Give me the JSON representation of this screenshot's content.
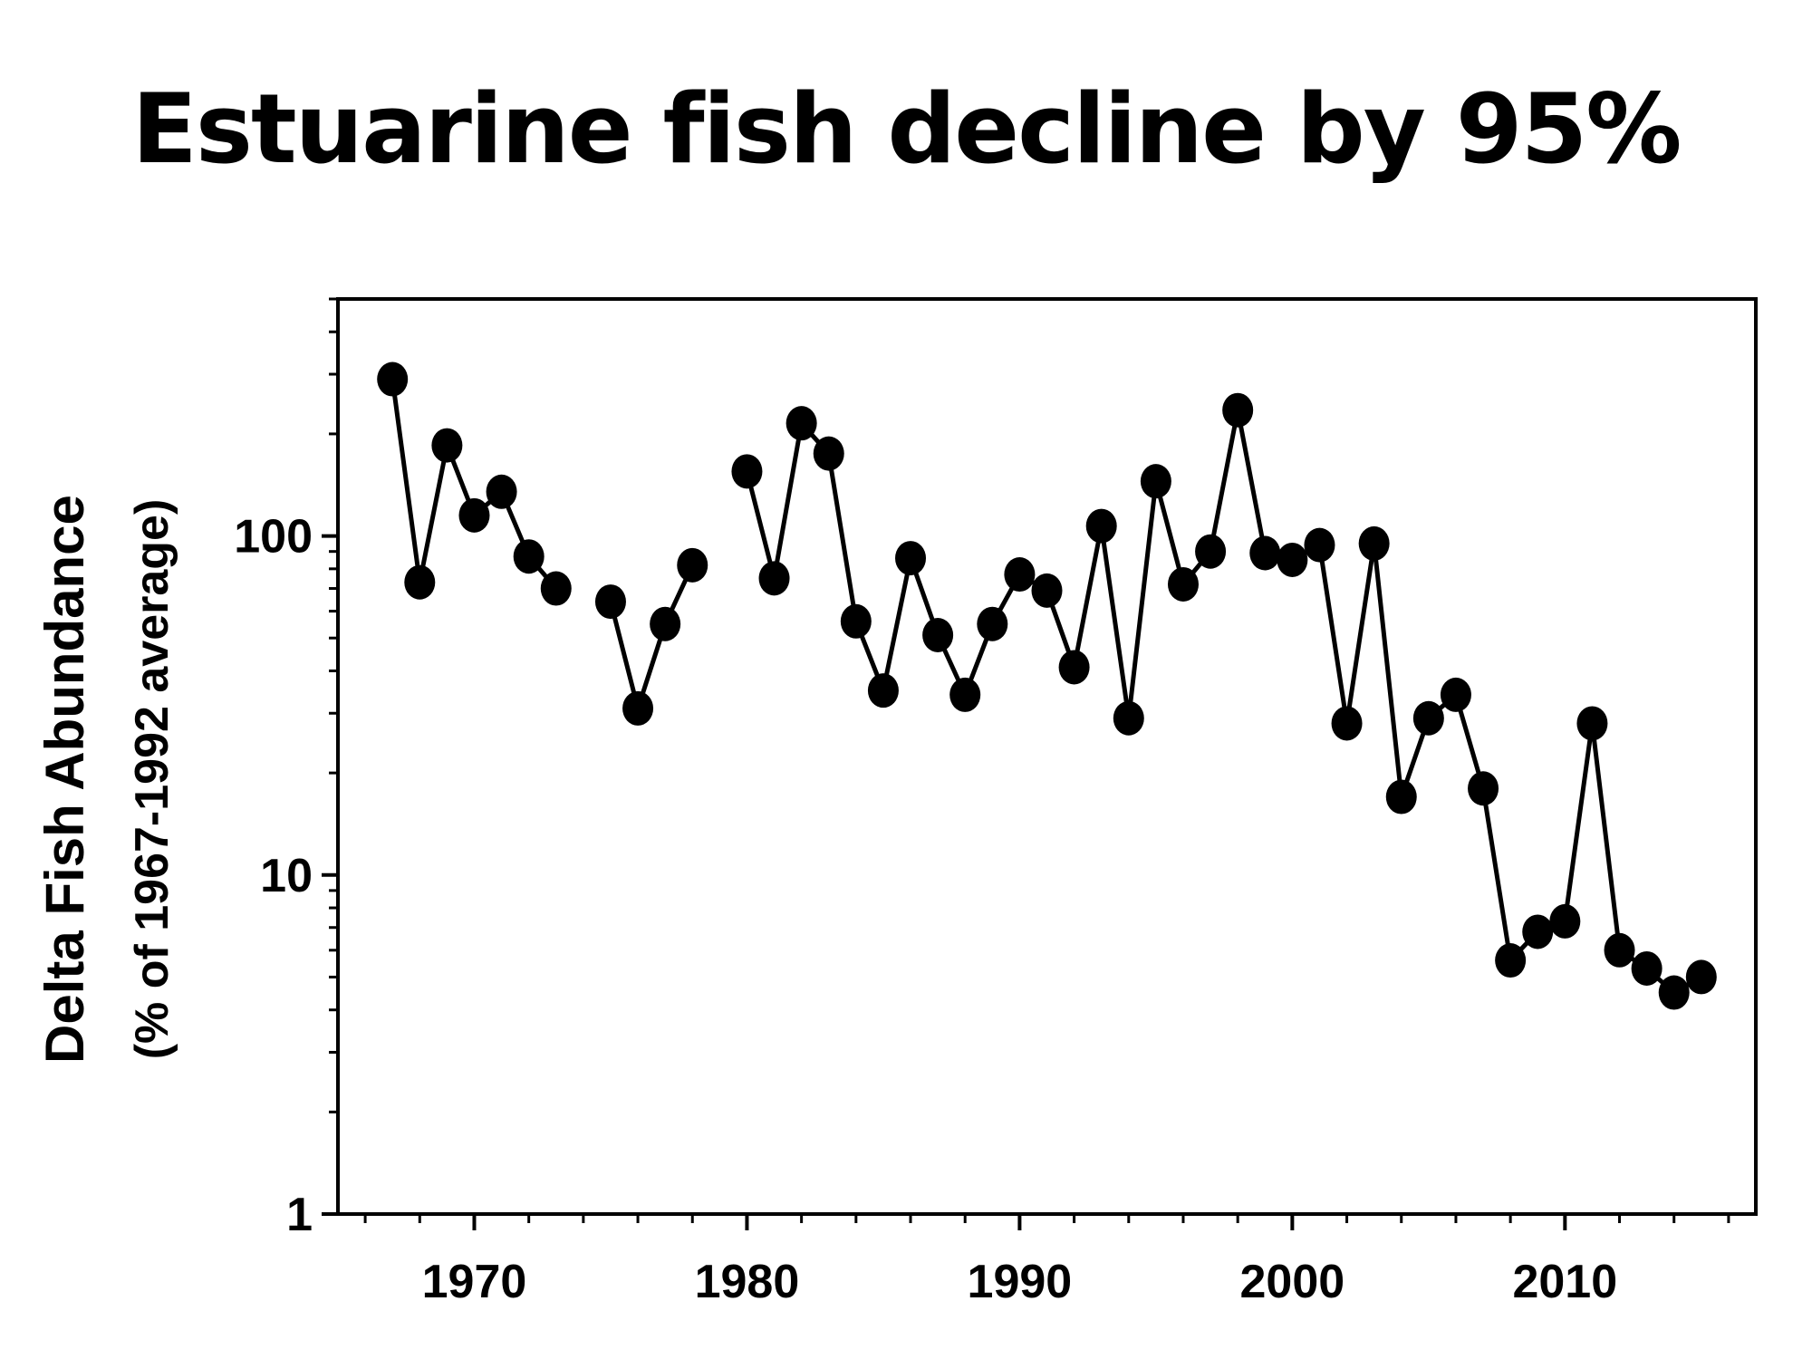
{
  "page": {
    "title": "Estuarine fish decline by 95%"
  },
  "chart_data": {
    "type": "line",
    "title": "Estuarine fish decline by 95%",
    "xlabel": "",
    "ylabel": "Delta Fish Abundance",
    "ylabel_sub": "(% of 1967-1992 average)",
    "yscale": "log",
    "xlim": [
      1965,
      2017
    ],
    "ylim": [
      1,
      500
    ],
    "x_ticks": [
      1970,
      1980,
      1990,
      2000,
      2010
    ],
    "x_tick_labels": [
      "1970",
      "1980",
      "1990",
      "2000",
      "2010"
    ],
    "y_ticks": [
      1,
      10,
      100
    ],
    "y_tick_labels": [
      "1",
      "10",
      "100"
    ],
    "grid": false,
    "legend": "none",
    "colors": {
      "line": "#000000",
      "marker": "#000000",
      "background": "#ffffff"
    },
    "series": [
      {
        "segments": [
          {
            "x": [
              1967,
              1968,
              1969,
              1970,
              1971,
              1972,
              1973
            ],
            "y": [
              290,
              73,
              185,
              115,
              135,
              87,
              70
            ]
          },
          {
            "x": [
              1975,
              1976,
              1977,
              1978
            ],
            "y": [
              64,
              31,
              55,
              82
            ]
          },
          {
            "x": [
              1980,
              1981,
              1982,
              1983,
              1984,
              1985,
              1986,
              1987,
              1988,
              1989,
              1990,
              1991,
              1992,
              1993,
              1994,
              1995,
              1996,
              1997,
              1998,
              1999,
              2000,
              2001,
              2002,
              2003,
              2004,
              2005,
              2006,
              2007,
              2008,
              2009,
              2010,
              2011,
              2012,
              2013,
              2014,
              2015
            ],
            "y": [
              155,
              75,
              215,
              175,
              56,
              35,
              86,
              51,
              34,
              55,
              77,
              69,
              41,
              107,
              29,
              145,
              72,
              90,
              235,
              89,
              85,
              94,
              28,
              95,
              17,
              29,
              34,
              18,
              5.6,
              6.8,
              7.3,
              28,
              6.0,
              5.3,
              4.5,
              5.0
            ]
          }
        ]
      }
    ]
  }
}
